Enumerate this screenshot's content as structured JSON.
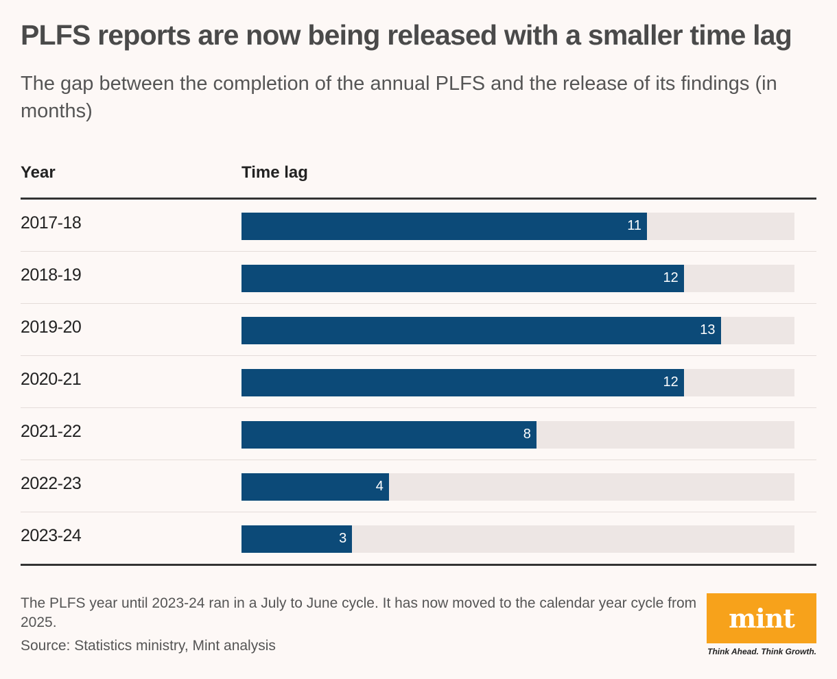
{
  "title": "PLFS reports are now being released with a smaller time lag",
  "subtitle": "The gap between the completion of the annual PLFS and the release of its findings (in months)",
  "columns": {
    "year": "Year",
    "lag": "Time lag"
  },
  "note": "The PLFS year until 2023-24 ran in a July to June cycle. It has now moved to the calendar year cycle from 2025.",
  "source": "Source: Statistics ministry, Mint analysis",
  "logo": {
    "word": "mint",
    "tagline": "Think Ahead. Think Growth."
  },
  "colors": {
    "bar": "#0c4a78",
    "track": "#ede6e4",
    "logo": "#f7a21b",
    "background": "#fdf8f6"
  },
  "chart_data": {
    "type": "bar",
    "orientation": "horizontal",
    "categories": [
      "2017-18",
      "2018-19",
      "2019-20",
      "2020-21",
      "2021-22",
      "2022-23",
      "2023-24"
    ],
    "values": [
      11,
      12,
      13,
      12,
      8,
      4,
      3
    ],
    "xlim": [
      0,
      15
    ],
    "grid": false
  }
}
